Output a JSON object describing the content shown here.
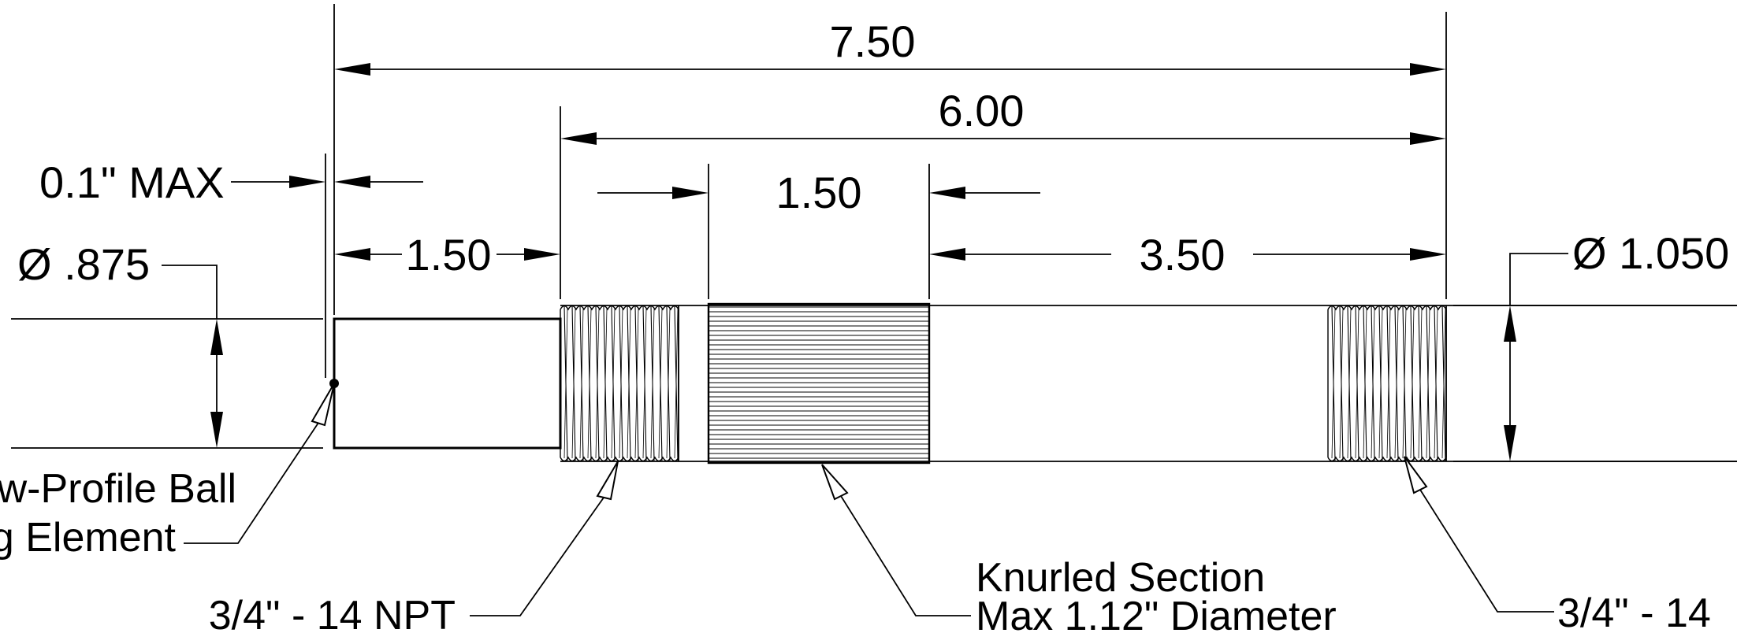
{
  "drawing": {
    "dimensions": {
      "overall_length": "7.50",
      "body_length": "6.00",
      "knurl_length": "1.50",
      "end_length": "1.50",
      "right_length": "3.50",
      "gap_max": "0.1\" MAX",
      "small_diameter": "Ø .875",
      "large_diameter": "Ø 1.050"
    },
    "callouts": {
      "ball_element_line1": "Low-Profile Ball",
      "ball_element_line2": "ing Element",
      "left_thread": "3/4\" - 14 NPT",
      "knurl_line1": "Knurled Section",
      "knurl_line2": "Max 1.12\" Diameter",
      "right_thread": "3/4\" - 14"
    }
  }
}
